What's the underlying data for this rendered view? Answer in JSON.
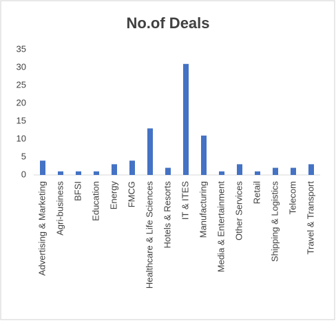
{
  "chart_data": {
    "type": "bar",
    "title": "No.of Deals",
    "categories": [
      "Advertising & Marketing",
      "Agri-business",
      "BFSI",
      "Education",
      "Energy",
      "FMCG",
      "Healthcare & Life Sciences",
      "Hotels & Resorts",
      "IT & ITES",
      "Manufacturing",
      "Media & Entertainment",
      "Other Services",
      "Retail",
      "Shipping & Logistics",
      "Telecom",
      "Travel & Transport"
    ],
    "values": [
      4,
      1,
      1,
      1,
      3,
      4,
      13,
      2,
      31,
      11,
      1,
      3,
      1,
      2,
      2,
      3
    ],
    "color": "#4472c4",
    "ylim": [
      0,
      35
    ],
    "yticks": [
      0,
      5,
      10,
      15,
      20,
      25,
      30,
      35
    ],
    "grid": false
  }
}
